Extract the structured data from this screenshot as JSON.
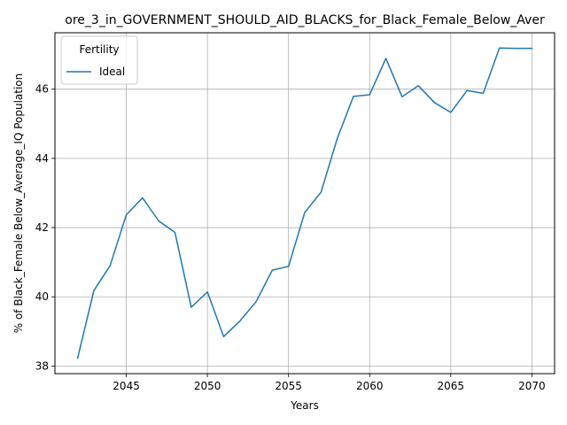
{
  "chart_data": {
    "type": "line",
    "title": "ore_3_in_GOVERNMENT_SHOULD_AID_BLACKS_for_Black_Female_Below_Aver",
    "xlabel": "Years",
    "ylabel": "% of Black_Female Below_Average_IQ Population",
    "xlim": [
      2040.6,
      2071.4
    ],
    "ylim": [
      37.78,
      47.63
    ],
    "xticks": [
      2045,
      2050,
      2055,
      2060,
      2065,
      2070
    ],
    "yticks": [
      38,
      40,
      42,
      44,
      46
    ],
    "grid": true,
    "legend": {
      "title": "Fertility",
      "position": "upper-left"
    },
    "series": [
      {
        "name": "Ideal",
        "color": "#1f77b4",
        "x": [
          2042,
          2043,
          2044,
          2045,
          2046,
          2047,
          2048,
          2049,
          2050,
          2051,
          2052,
          2053,
          2054,
          2055,
          2056,
          2057,
          2058,
          2059,
          2060,
          2061,
          2062,
          2063,
          2064,
          2065,
          2066,
          2067,
          2068,
          2069,
          2070
        ],
        "y": [
          38.23,
          40.18,
          40.9,
          42.37,
          42.86,
          42.19,
          41.86,
          39.7,
          40.14,
          38.85,
          39.3,
          39.86,
          40.77,
          40.88,
          42.44,
          43.02,
          44.57,
          45.79,
          45.84,
          46.89,
          45.78,
          46.1,
          45.61,
          45.33,
          45.96,
          45.88,
          47.19,
          47.18,
          47.18
        ]
      }
    ]
  }
}
